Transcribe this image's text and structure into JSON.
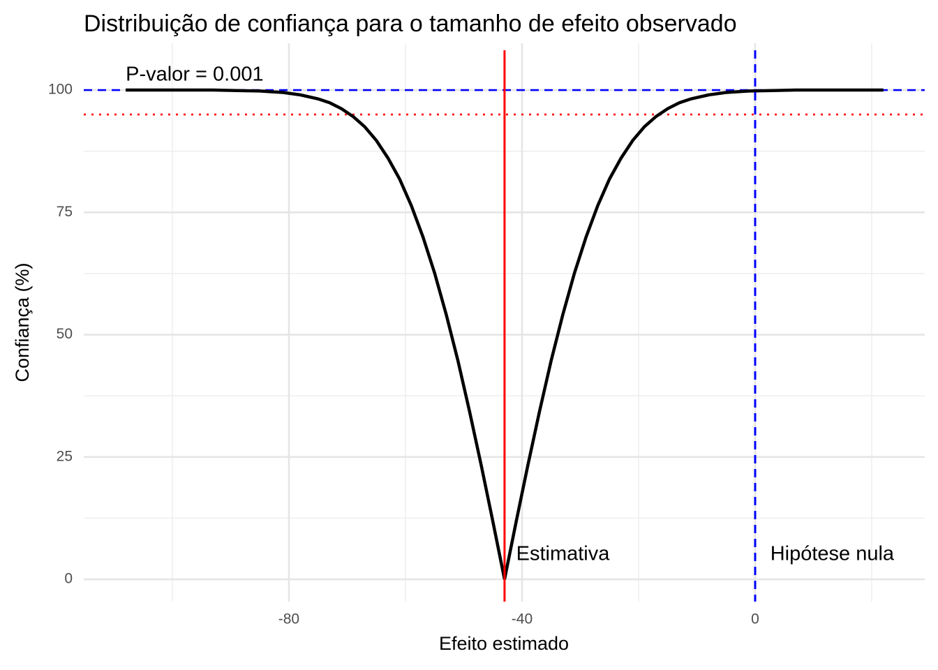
{
  "chart_data": {
    "type": "line",
    "title": "Distribuição de confiança para o tamanho de efeito observado",
    "x_label": "Efeito estimado",
    "y_label": "Confiança (%)",
    "x": [
      -108,
      -103,
      -98,
      -93,
      -89,
      -85,
      -81,
      -78,
      -75,
      -73,
      -71,
      -69,
      -67,
      -65,
      -63,
      -61,
      -59,
      -57,
      -55,
      -53,
      -51,
      -49,
      -47,
      -45,
      -43,
      -41,
      -39,
      -37,
      -35,
      -33,
      -31,
      -29,
      -27,
      -25,
      -23,
      -21,
      -19,
      -17,
      -15,
      -13,
      -11,
      -8,
      -5,
      -1,
      3,
      7,
      12,
      17,
      22
    ],
    "values": [
      100,
      100,
      100,
      100,
      99.9,
      99.8,
      99.5,
      99.0,
      98.2,
      97.4,
      96.2,
      94.6,
      92.5,
      89.7,
      86.1,
      81.8,
      76.4,
      70.0,
      62.6,
      54.1,
      44.7,
      34.3,
      23.3,
      11.8,
      0,
      11.8,
      23.3,
      34.3,
      44.7,
      54.1,
      62.6,
      70.0,
      76.4,
      81.8,
      86.1,
      89.7,
      92.5,
      94.6,
      96.2,
      97.4,
      98.2,
      99.0,
      99.5,
      99.8,
      99.9,
      100,
      100,
      100,
      100
    ],
    "color": "#000000",
    "xlim": [
      -115.2,
      29.1
    ],
    "ylim": [
      -4.56,
      109.56
    ],
    "xticks": [
      -80,
      -40,
      0
    ],
    "yticks": [
      0,
      25,
      50,
      75,
      100
    ],
    "x_minor_ticks": [
      -100,
      -60,
      -20,
      20
    ],
    "y_minor_ticks": [
      12.5,
      37.5,
      62.5,
      87.5
    ],
    "grid": true,
    "hlines": [
      {
        "y": 100,
        "color": "#0000ff",
        "dash": "dashed"
      },
      {
        "y": 95,
        "color": "#ff0000",
        "dash": "dotted"
      }
    ],
    "vlines": [
      {
        "x": -43,
        "color": "#ff0000",
        "dash": "solid"
      },
      {
        "x": 0,
        "color": "#0000ff",
        "dash": "dashed"
      }
    ],
    "annotations": [
      {
        "text": "P-valor = 0.001",
        "x": -108,
        "y": 103
      },
      {
        "text": "Estimativa",
        "x": -41,
        "y": 5
      },
      {
        "text": "Hipótese nula",
        "x": 2.6,
        "y": 5
      }
    ]
  }
}
